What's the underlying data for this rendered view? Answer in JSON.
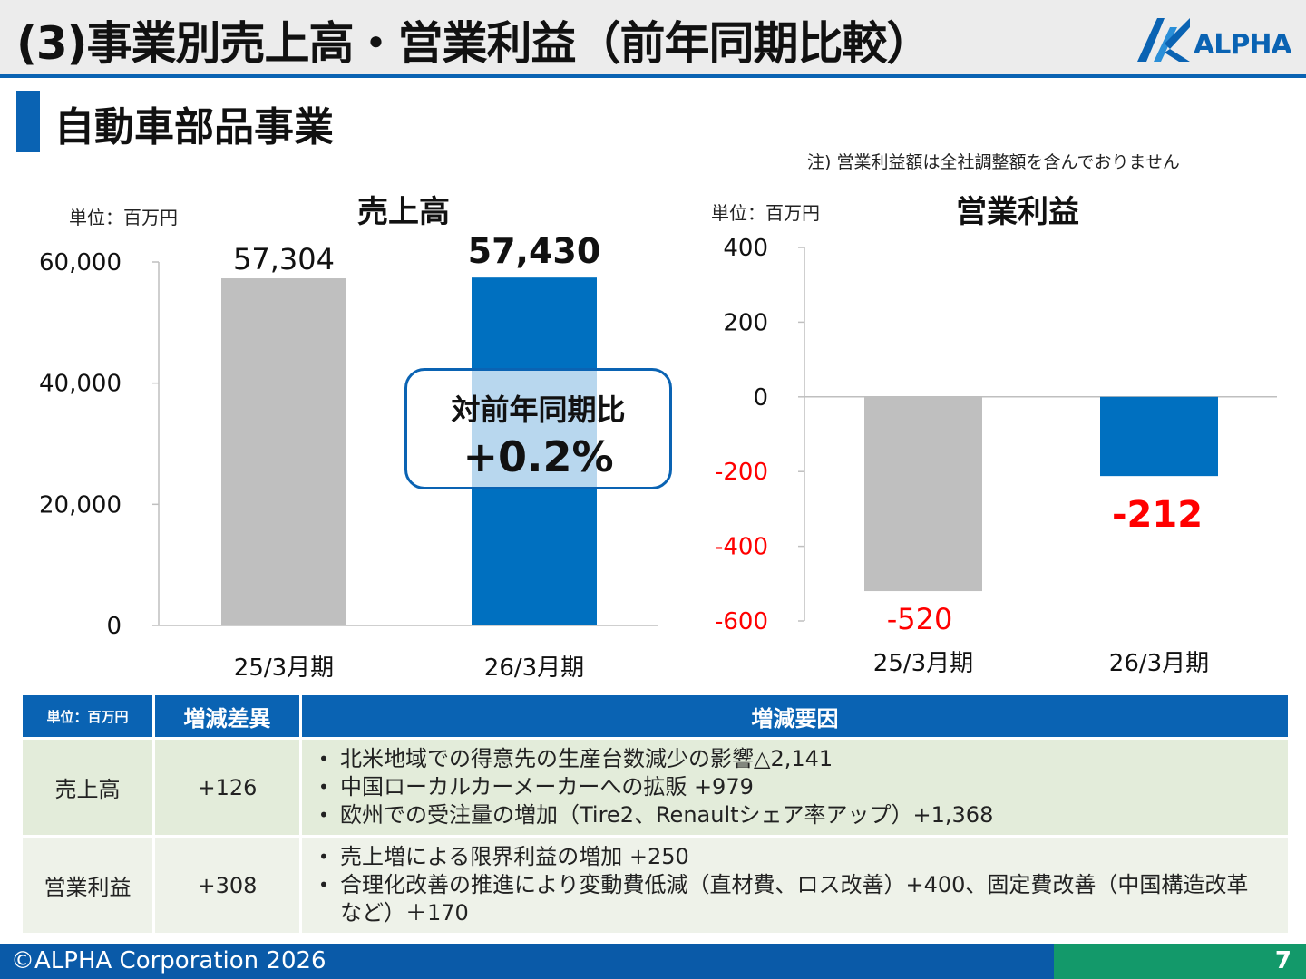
{
  "header": {
    "title": "(3)事業別売上高・営業利益（前年同期比較）",
    "logo_text": "ALPHA"
  },
  "section": {
    "title": "自動車部品事業",
    "note": "注) 営業利益額は全社調整額を含んでおりません"
  },
  "colors": {
    "accent": "#0a63b3",
    "previous": "#bfbfbf",
    "current": "#0070c0",
    "negative": "#ff0000",
    "footer_green": "#13996a"
  },
  "chart_data": [
    {
      "type": "bar",
      "title": "売上高",
      "unit": "単位：百万円",
      "categories": [
        "25/3月期",
        "26/3月期"
      ],
      "values": [
        57304,
        57430
      ],
      "value_labels": [
        "57,304",
        "57,430"
      ],
      "ylim": [
        0,
        60000
      ],
      "yticks": [
        0,
        20000,
        40000,
        60000
      ],
      "ytick_labels": [
        "0",
        "20,000",
        "40,000",
        "60,000"
      ],
      "callout": {
        "label": "対前年同期比",
        "value": "+0.2%"
      }
    },
    {
      "type": "bar",
      "title": "営業利益",
      "unit": "単位：百万円",
      "categories": [
        "25/3月期",
        "26/3月期"
      ],
      "values": [
        -520,
        -212
      ],
      "value_labels": [
        "-520",
        "-212"
      ],
      "ylim": [
        -600,
        400
      ],
      "yticks": [
        -600,
        -400,
        -200,
        0,
        200,
        400
      ],
      "ytick_labels": [
        "-600",
        "-400",
        "-200",
        "0",
        "200",
        "400"
      ]
    }
  ],
  "table": {
    "headers": {
      "unit": "単位：百万円",
      "diff": "増減差異",
      "factor": "増減要因"
    },
    "rows": [
      {
        "label": "売上高",
        "diff": "+126",
        "factors": [
          "北米地域での得意先の生産台数減少の影響△2,141",
          "中国ローカルカーメーカーへの拡販 +979",
          "欧州での受注量の増加（Tire2、Renaultシェア率アップ）+1,368"
        ]
      },
      {
        "label": "営業利益",
        "diff": "+308",
        "factors": [
          "売上増による限界利益の増加 +250",
          "合理化改善の推進により変動費低減（直材費、ロス改善）+400、固定費改善（中国構造改革など）＋170"
        ]
      }
    ]
  },
  "footer": {
    "copyright": "©ALPHA Corporation 2026",
    "page": "7"
  }
}
